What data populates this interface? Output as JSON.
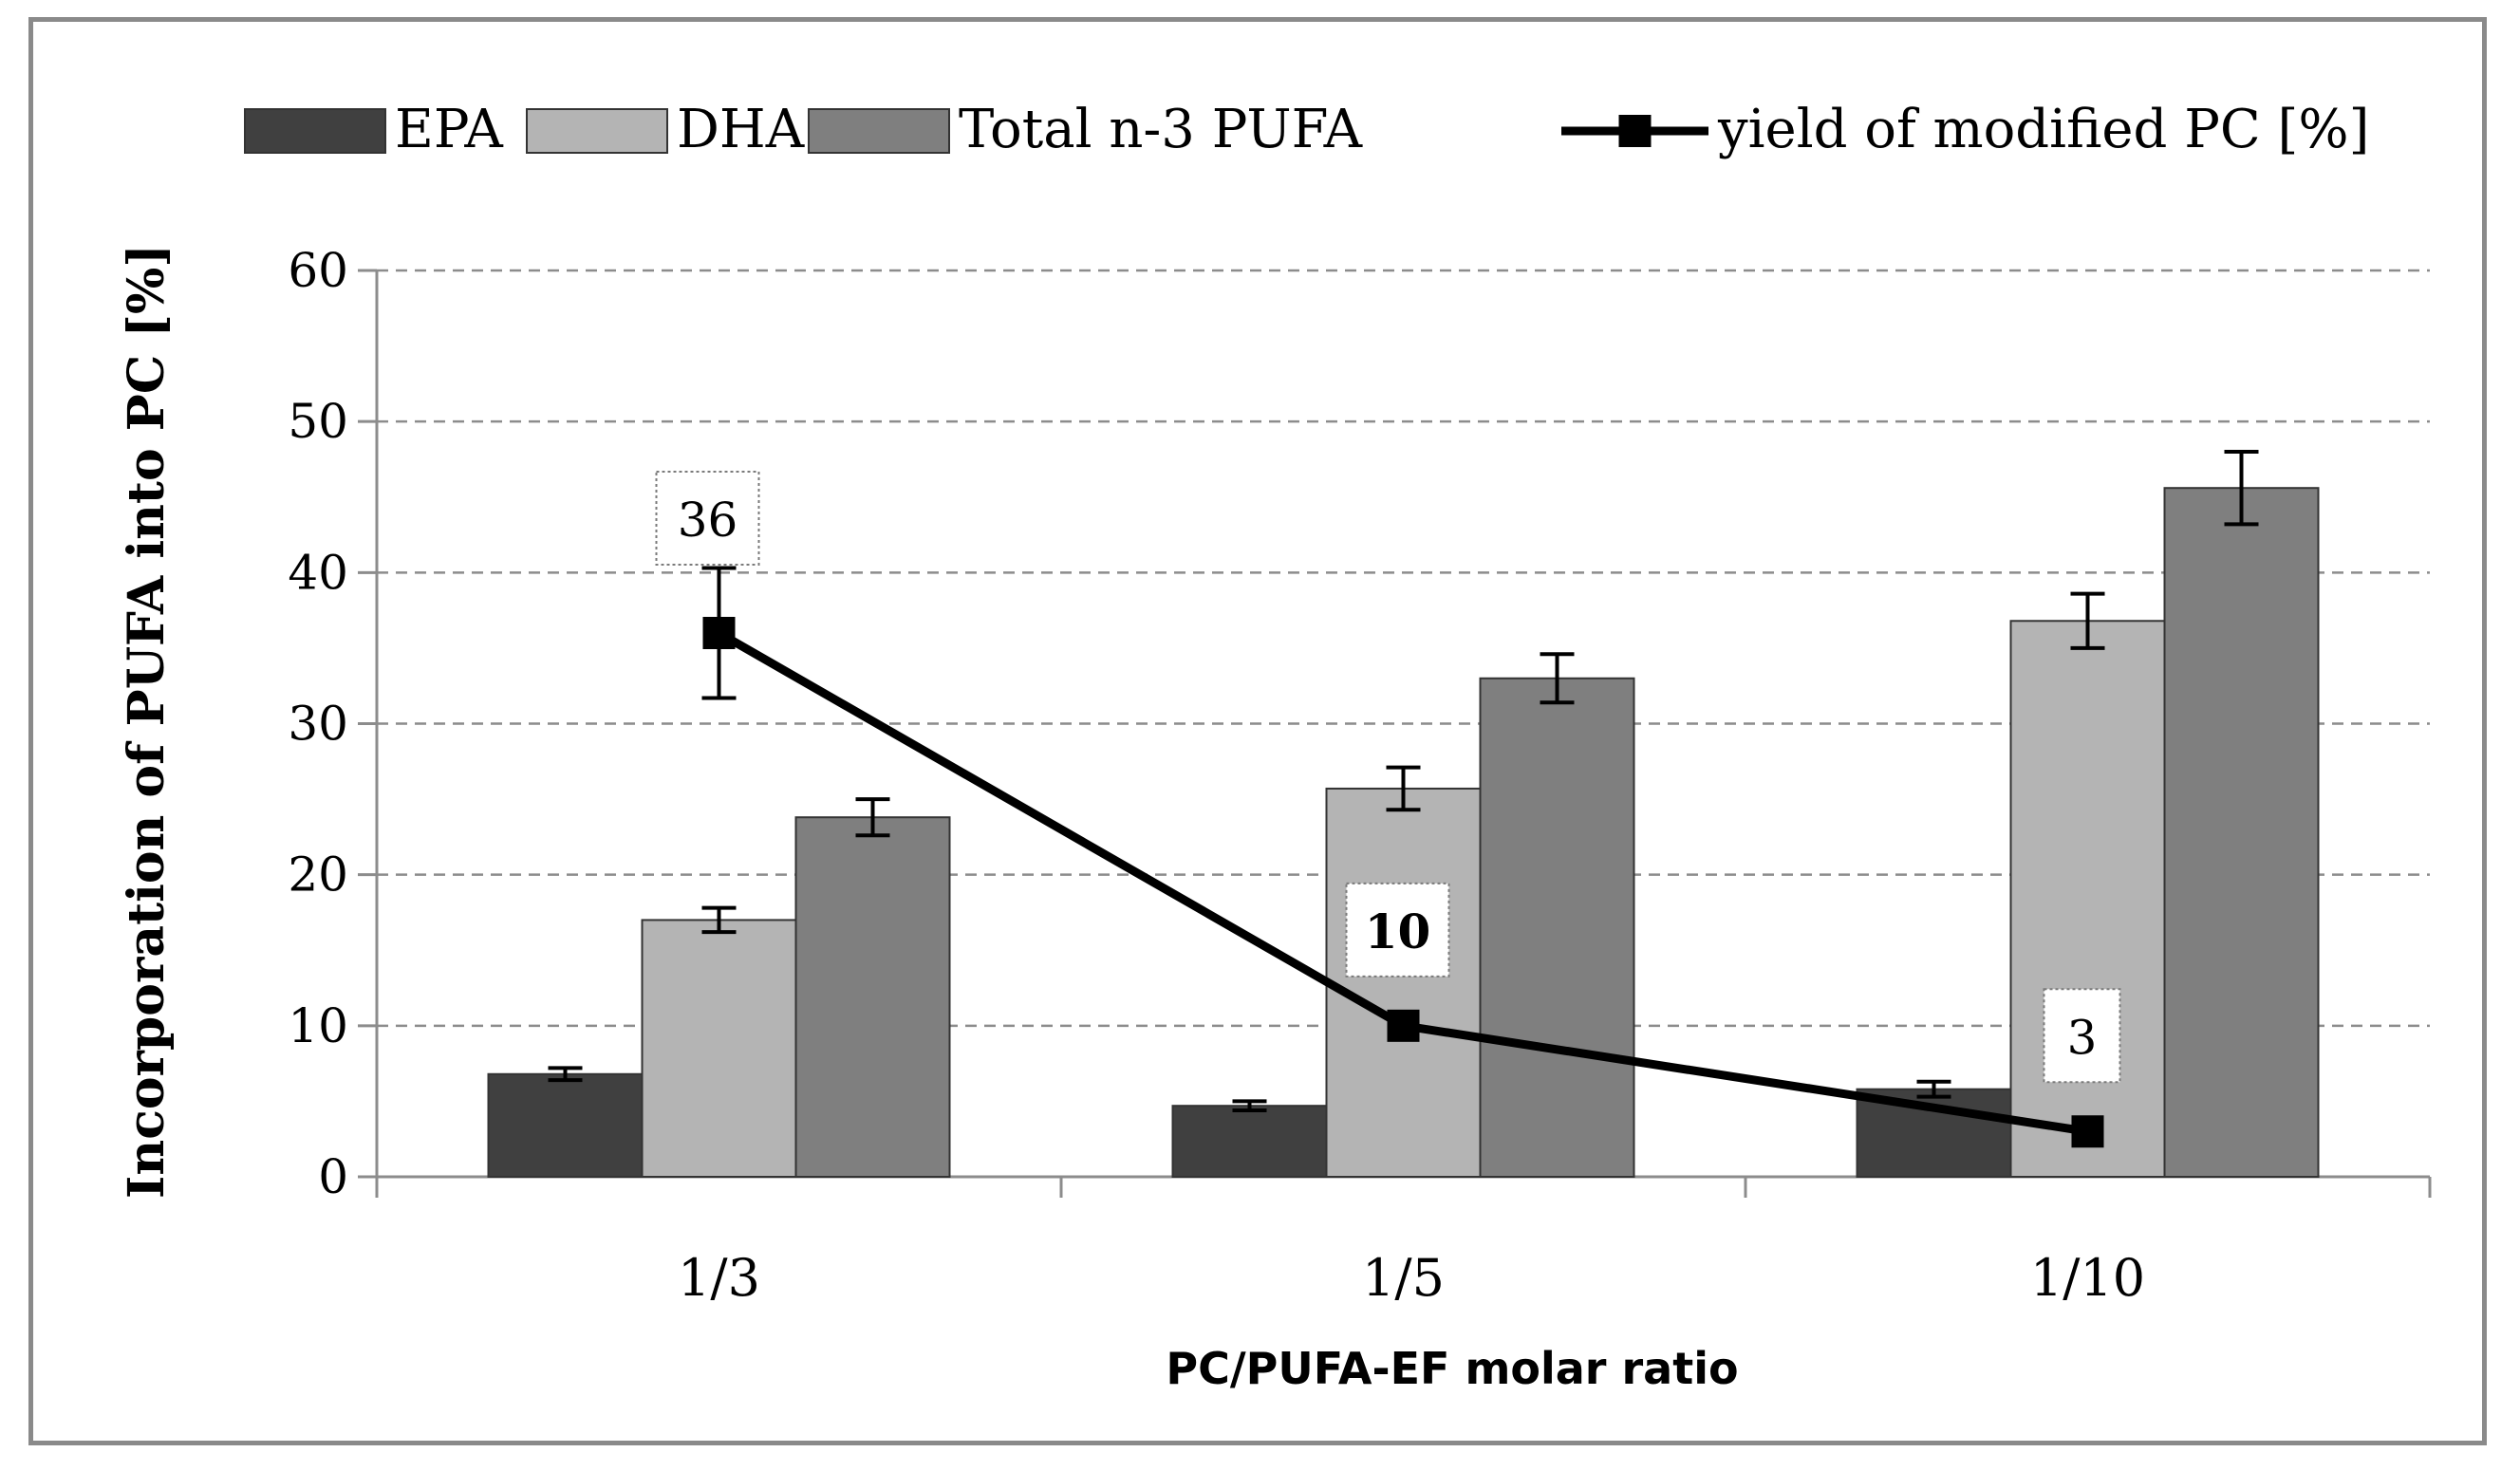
{
  "chart_data": {
    "type": "bar",
    "title": "",
    "xlabel": "PC/PUFA-EF molar ratio",
    "ylabel": "Incorporation of PUFA into PC [%]",
    "ylim": [
      0,
      60
    ],
    "yticks": [
      0,
      10,
      20,
      30,
      40,
      50,
      60
    ],
    "ytick_labels": [
      "0",
      "10",
      "20",
      "30",
      "40",
      "50",
      "60"
    ],
    "grid": true,
    "legend_position": "top",
    "categories": [
      "1/3",
      "1/5",
      "1/10"
    ],
    "series": [
      {
        "name": "EPA",
        "color": "#404040",
        "values": [
          6.8,
          4.7,
          5.8
        ],
        "errors": [
          0.4,
          0.3,
          0.5
        ]
      },
      {
        "name": "DHA",
        "color": "#b4b4b4",
        "values": [
          17.0,
          25.7,
          36.8
        ],
        "errors": [
          0.8,
          1.4,
          1.8
        ]
      },
      {
        "name": "Total n-3 PUFA",
        "color": "#7f7f7f",
        "values": [
          23.8,
          33.0,
          45.6
        ],
        "errors": [
          1.2,
          1.6,
          2.4
        ]
      }
    ],
    "line_series": {
      "name": "yield of modified PC [%]",
      "color": "#000000",
      "values": [
        36,
        10,
        3
      ],
      "errors": [
        4.3,
        0,
        0
      ],
      "data_labels": [
        "36",
        "10",
        "3"
      ]
    }
  }
}
